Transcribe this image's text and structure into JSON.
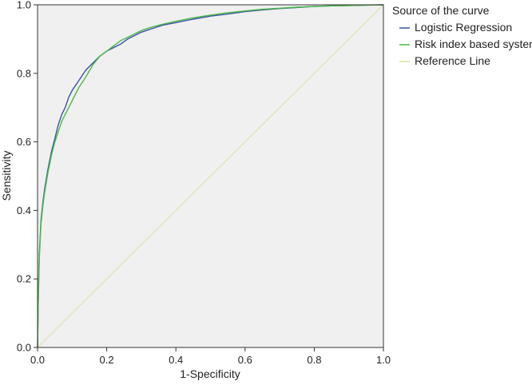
{
  "chart_data": {
    "type": "line",
    "xlabel": "1-Specificity",
    "ylabel": "Sensitivity",
    "xlim": [
      0,
      1
    ],
    "ylim": [
      0,
      1
    ],
    "x_ticks": [
      "0.0",
      "0.2",
      "0.4",
      "0.6",
      "0.8",
      "1.0"
    ],
    "y_ticks": [
      "0.0",
      "0.2",
      "0.4",
      "0.6",
      "0.8",
      "1.0"
    ],
    "grid": false,
    "plot_background": "#f0f0f0",
    "legend": {
      "title": "Source of the curve",
      "placement": "top-right outside"
    },
    "series": [
      {
        "name": "Logistic Regression",
        "color": "#3b52a4",
        "x": [
          0,
          0.002,
          0.005,
          0.01,
          0.015,
          0.02,
          0.03,
          0.04,
          0.05,
          0.06,
          0.07,
          0.08,
          0.09,
          0.1,
          0.12,
          0.14,
          0.16,
          0.18,
          0.2,
          0.22,
          0.24,
          0.26,
          0.28,
          0.3,
          0.33,
          0.36,
          0.4,
          0.45,
          0.5,
          0.55,
          0.6,
          0.65,
          0.7,
          0.75,
          0.8,
          0.85,
          0.9,
          0.95,
          1.0
        ],
        "y": [
          0,
          0.14,
          0.27,
          0.37,
          0.42,
          0.46,
          0.52,
          0.57,
          0.61,
          0.65,
          0.68,
          0.7,
          0.73,
          0.75,
          0.78,
          0.81,
          0.83,
          0.85,
          0.865,
          0.875,
          0.885,
          0.9,
          0.91,
          0.92,
          0.93,
          0.94,
          0.948,
          0.958,
          0.967,
          0.973,
          0.98,
          0.985,
          0.989,
          0.992,
          0.995,
          0.997,
          0.998,
          0.999,
          1.0
        ]
      },
      {
        "name": "Risk index based system",
        "color": "#4cb848",
        "x": [
          0,
          0.002,
          0.005,
          0.01,
          0.015,
          0.02,
          0.03,
          0.04,
          0.05,
          0.06,
          0.07,
          0.08,
          0.09,
          0.1,
          0.12,
          0.14,
          0.16,
          0.18,
          0.2,
          0.22,
          0.24,
          0.26,
          0.28,
          0.3,
          0.33,
          0.36,
          0.4,
          0.45,
          0.5,
          0.55,
          0.6,
          0.65,
          0.7,
          0.75,
          0.8,
          0.85,
          0.9,
          0.95,
          1.0
        ],
        "y": [
          0,
          0.13,
          0.26,
          0.36,
          0.41,
          0.45,
          0.51,
          0.56,
          0.6,
          0.63,
          0.66,
          0.68,
          0.7,
          0.72,
          0.76,
          0.79,
          0.825,
          0.85,
          0.865,
          0.88,
          0.895,
          0.905,
          0.915,
          0.925,
          0.935,
          0.943,
          0.952,
          0.962,
          0.97,
          0.977,
          0.982,
          0.987,
          0.99,
          0.993,
          0.995,
          0.997,
          0.998,
          0.999,
          1.0
        ]
      },
      {
        "name": "Reference Line",
        "color": "#d9e2a6",
        "x": [
          0,
          1
        ],
        "y": [
          0,
          1
        ]
      }
    ]
  }
}
